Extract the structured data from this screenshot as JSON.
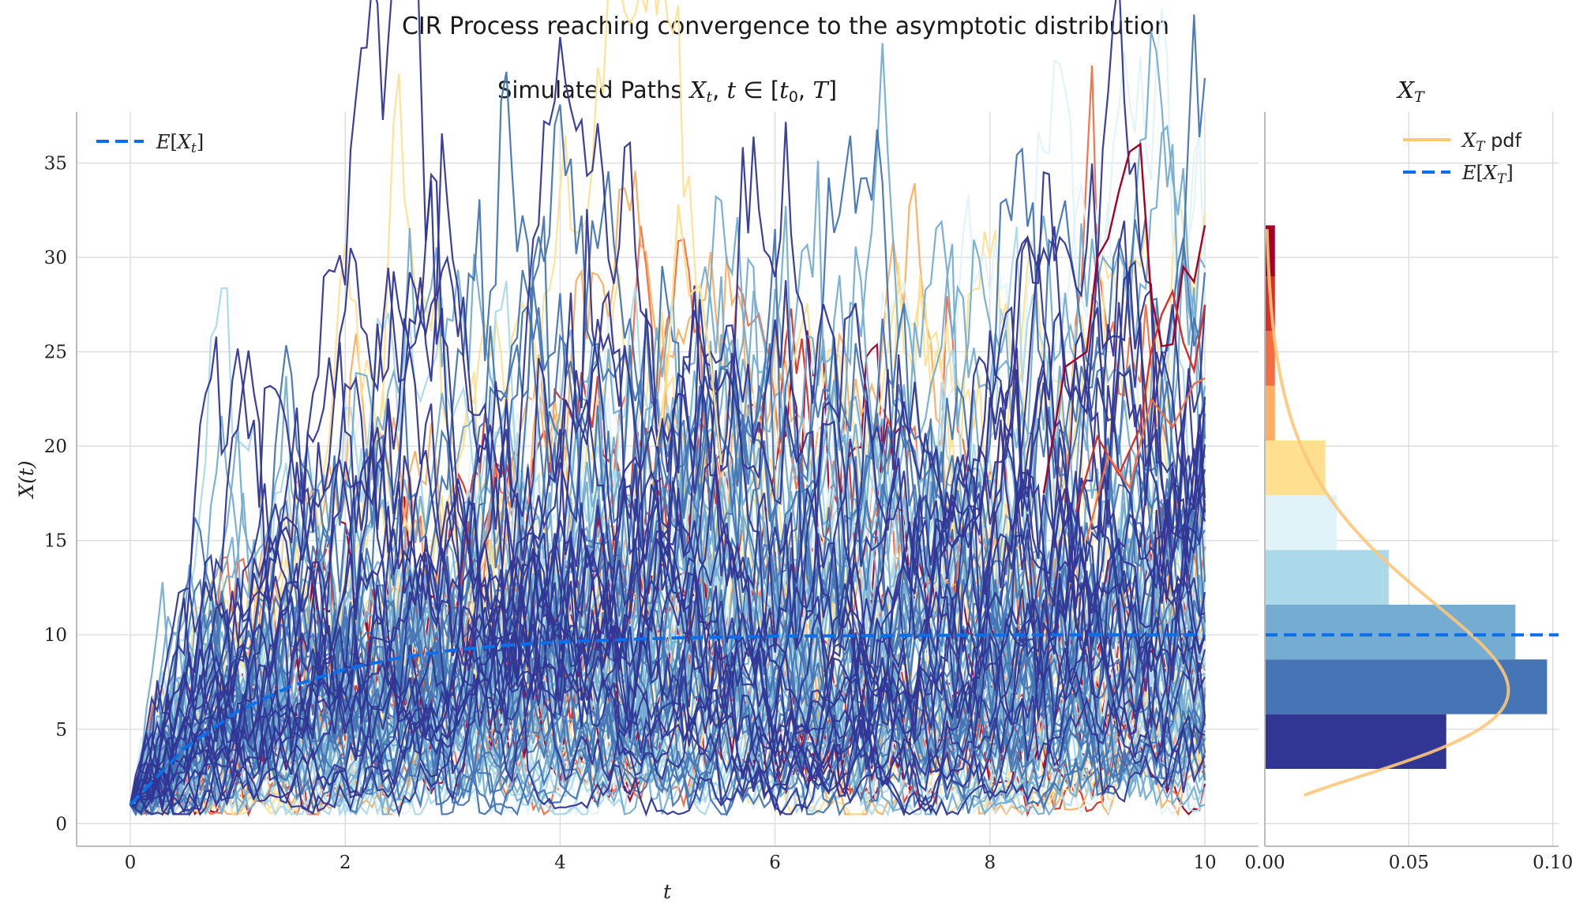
{
  "figure": {
    "suptitle": "CIR Process reaching convergence to the asymptotic distribution"
  },
  "chart_data": [
    {
      "type": "line",
      "title": "Simulated Paths X_t, t ∈ [t_0, T]",
      "xlabel": "t",
      "ylabel": "X(t)",
      "xlim": [
        -0.5,
        10.5
      ],
      "ylim": [
        -1.2,
        37.7
      ],
      "xticks": [
        0,
        2,
        4,
        6,
        8,
        10
      ],
      "yticks": [
        0,
        5,
        10,
        15,
        20,
        25,
        30,
        35
      ],
      "grid": true,
      "legend": {
        "placement": "top-left",
        "entries": [
          "E[X_t]"
        ]
      },
      "n_paths": 100,
      "x0": 1.0,
      "long_run_mean": 10.0,
      "mean_reversion_speed": 0.8,
      "expected_path": {
        "x": [
          0,
          0.5,
          1,
          1.5,
          2,
          2.5,
          3,
          3.5,
          4,
          5,
          6,
          7,
          8,
          9,
          10
        ],
        "y": [
          1.0,
          3.97,
          5.96,
          7.29,
          8.18,
          8.78,
          9.19,
          9.45,
          9.63,
          9.83,
          9.93,
          9.97,
          9.99,
          10.0,
          10.0
        ]
      },
      "highlighted_paths": [
        {
          "color": "#a50026",
          "x": [
            8.5,
            8.7,
            8.9,
            9.0,
            9.1,
            9.2,
            9.3,
            9.4,
            9.5,
            9.6,
            9.7,
            9.8,
            9.9,
            10.0
          ],
          "y": [
            17.5,
            24.2,
            25.0,
            30.0,
            31.0,
            33.5,
            35.6,
            36.0,
            28.0,
            25.3,
            25.4,
            29.5,
            28.7,
            31.7
          ]
        },
        {
          "color": "#d73027",
          "x": [
            8.8,
            9.0,
            9.2,
            9.4,
            9.5,
            9.6,
            9.7,
            9.8,
            9.9,
            10.0
          ],
          "y": [
            16.5,
            20.5,
            18.5,
            21.0,
            25.0,
            27.0,
            28.2,
            25.5,
            24.0,
            27.5
          ]
        },
        {
          "color": "#f46d43",
          "x": [
            8.9,
            9.1,
            9.3,
            9.5,
            9.7,
            9.9,
            10.0
          ],
          "y": [
            15.0,
            19.5,
            17.8,
            22.5,
            21.0,
            23.3,
            23.6
          ]
        },
        {
          "color": "#fee090",
          "x": [
            4.9,
            5.0,
            5.1,
            5.2,
            5.3,
            5.4,
            5.5
          ],
          "y": [
            20.0,
            24.0,
            32.8,
            28.0,
            28.5,
            24.5,
            19.0
          ]
        }
      ]
    },
    {
      "type": "bar",
      "title": "X_T",
      "orientation": "horizontal",
      "xlim": [
        0,
        0.102
      ],
      "xticks": [
        0.0,
        0.05,
        0.1
      ],
      "ylim": [
        -1.2,
        37.7
      ],
      "grid": true,
      "legend": {
        "placement": "top-right",
        "entries": [
          "X_T pdf",
          "E[X_T]"
        ]
      },
      "bins": [
        {
          "lo": 2.9,
          "hi": 5.8,
          "density": 0.063,
          "color": "#313695"
        },
        {
          "lo": 5.8,
          "hi": 8.7,
          "density": 0.098,
          "color": "#4575b4"
        },
        {
          "lo": 8.7,
          "hi": 11.6,
          "density": 0.087,
          "color": "#74add1"
        },
        {
          "lo": 11.6,
          "hi": 14.5,
          "density": 0.043,
          "color": "#abd9e9"
        },
        {
          "lo": 14.5,
          "hi": 17.4,
          "density": 0.025,
          "color": "#e0f3f8"
        },
        {
          "lo": 17.4,
          "hi": 20.3,
          "density": 0.021,
          "color": "#fee090"
        },
        {
          "lo": 20.3,
          "hi": 23.2,
          "density": 0.0035,
          "color": "#fdae61"
        },
        {
          "lo": 23.2,
          "hi": 26.1,
          "density": 0.0035,
          "color": "#f46d43"
        },
        {
          "lo": 26.1,
          "hi": 29.0,
          "density": 0.0035,
          "color": "#d73027"
        },
        {
          "lo": 29.0,
          "hi": 31.7,
          "density": 0.0035,
          "color": "#a50026"
        }
      ],
      "pdf_color": "#fdc77a",
      "mean_line": {
        "y": 10.0,
        "color": "#0a6fea"
      }
    }
  ],
  "colors": {
    "mean_line": "#0a6fea",
    "palette": [
      "#313695",
      "#4575b4",
      "#74add1",
      "#abd9e9",
      "#e0f3f8",
      "#fee090",
      "#fdae61",
      "#f46d43",
      "#d73027",
      "#a50026"
    ]
  }
}
